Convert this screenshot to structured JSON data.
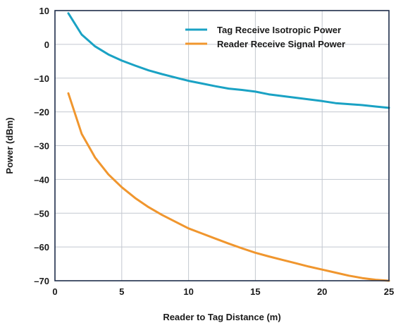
{
  "chart_data": {
    "type": "line",
    "title": "",
    "xlabel": "Reader to Tag Distance (m)",
    "ylabel": "Power (dBm)",
    "xlim": [
      0,
      25
    ],
    "ylim": [
      -70,
      10
    ],
    "x_ticks": [
      0,
      5,
      10,
      15,
      20,
      25
    ],
    "y_ticks": [
      10,
      0,
      -10,
      -20,
      -30,
      -40,
      -50,
      -60,
      -70
    ],
    "x_tick_labels": [
      "0",
      "5",
      "10",
      "15",
      "20",
      "25"
    ],
    "y_tick_labels": [
      "10",
      "0",
      "–10",
      "–20",
      "–30",
      "–40",
      "–50",
      "–60",
      "–70"
    ],
    "grid": true,
    "legend_position": "top-right",
    "series": [
      {
        "name": "Tag Receive Isotropic Power",
        "color": "#1aa2c4",
        "x": [
          1,
          2,
          3,
          4,
          5,
          6,
          7,
          8,
          9,
          10,
          11,
          12,
          13,
          14,
          15,
          16,
          17,
          18,
          19,
          20,
          21,
          22,
          23,
          24,
          25
        ],
        "y": [
          9.2,
          2.9,
          -0.6,
          -3.0,
          -4.8,
          -6.3,
          -7.7,
          -8.8,
          -9.8,
          -10.8,
          -11.6,
          -12.4,
          -13.1,
          -13.5,
          -14.0,
          -14.8,
          -15.3,
          -15.8,
          -16.3,
          -16.8,
          -17.4,
          -17.7,
          -18.0,
          -18.4,
          -18.8
        ]
      },
      {
        "name": "Reader Receive Signal Power",
        "color": "#f0962e",
        "x": [
          1,
          2,
          3,
          4,
          5,
          6,
          7,
          8,
          9,
          10,
          11,
          12,
          13,
          14,
          15,
          16,
          17,
          18,
          19,
          20,
          21,
          22,
          23,
          24,
          25
        ],
        "y": [
          -14.5,
          -26.5,
          -33.5,
          -38.5,
          -42.3,
          -45.5,
          -48.2,
          -50.5,
          -52.5,
          -54.5,
          -56.0,
          -57.5,
          -59.0,
          -60.4,
          -61.7,
          -62.8,
          -63.8,
          -64.8,
          -65.8,
          -66.7,
          -67.6,
          -68.5,
          -69.2,
          -69.7,
          -70.0
        ]
      }
    ]
  }
}
